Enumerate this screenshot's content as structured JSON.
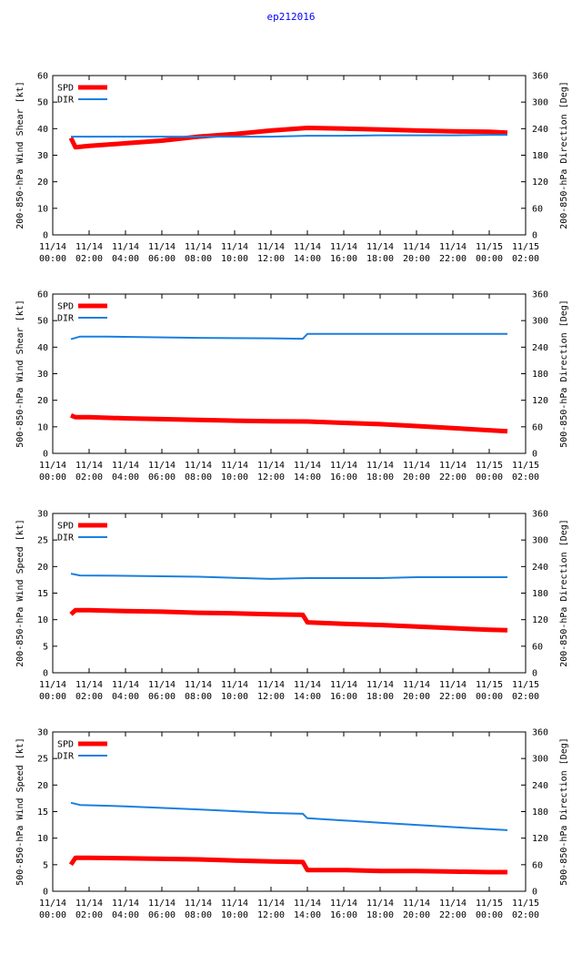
{
  "title": "ep212016",
  "colors": {
    "spd": "#ff0000",
    "dir": "#1a7fe0",
    "grid": "#000000"
  },
  "x_ticks": [
    [
      "11/14",
      "00:00"
    ],
    [
      "11/14",
      "02:00"
    ],
    [
      "11/14",
      "04:00"
    ],
    [
      "11/14",
      "06:00"
    ],
    [
      "11/14",
      "08:00"
    ],
    [
      "11/14",
      "10:00"
    ],
    [
      "11/14",
      "12:00"
    ],
    [
      "11/14",
      "14:00"
    ],
    [
      "11/14",
      "16:00"
    ],
    [
      "11/14",
      "18:00"
    ],
    [
      "11/14",
      "20:00"
    ],
    [
      "11/14",
      "22:00"
    ],
    [
      "11/15",
      "00:00"
    ],
    [
      "11/15",
      "02:00"
    ]
  ],
  "chart_data": [
    {
      "type": "line",
      "ylabel": "200-850-hPa Wind Shear [kt]",
      "y2label": "200-850-hPa Direction [Deg]",
      "xlim": [
        "11/14 00:00",
        "11/15 02:00"
      ],
      "ylim": [
        0,
        60
      ],
      "yticks": [
        0,
        10,
        20,
        30,
        40,
        50,
        60
      ],
      "y2lim": [
        0,
        360
      ],
      "y2ticks": [
        0,
        60,
        120,
        180,
        240,
        300,
        360
      ],
      "legend": [
        "SPD",
        "DIR"
      ],
      "series": [
        {
          "name": "SPD",
          "axis": "left",
          "x": [
            "11/14 01:00",
            "11/14 01:15",
            "11/14 02:00",
            "11/14 04:00",
            "11/14 06:00",
            "11/14 08:00",
            "11/14 10:00",
            "11/14 12:00",
            "11/14 14:00",
            "11/14 16:00",
            "11/14 18:00",
            "11/14 20:00",
            "11/14 22:00",
            "11/15 00:00",
            "11/15 01:00"
          ],
          "y": [
            36.5,
            33,
            33.5,
            34.5,
            35.5,
            37,
            38,
            39.3,
            40.3,
            40,
            39.7,
            39.3,
            39,
            38.8,
            38.5
          ]
        },
        {
          "name": "DIR",
          "axis": "right",
          "x": [
            "11/14 01:00",
            "11/14 04:00",
            "11/14 08:00",
            "11/14 12:00",
            "11/14 14:00",
            "11/14 16:00",
            "11/14 18:00",
            "11/14 22:00",
            "11/15 00:00",
            "11/15 01:00"
          ],
          "y": [
            222,
            222,
            222,
            222,
            224,
            224,
            225,
            225,
            226,
            226
          ]
        }
      ]
    },
    {
      "type": "line",
      "ylabel": "500-850-hPa Wind Shear [kt]",
      "y2label": "500-850-hPa Direction [Deg]",
      "xlim": [
        "11/14 00:00",
        "11/15 02:00"
      ],
      "ylim": [
        0,
        60
      ],
      "yticks": [
        0,
        10,
        20,
        30,
        40,
        50,
        60
      ],
      "y2lim": [
        0,
        360
      ],
      "y2ticks": [
        0,
        60,
        120,
        180,
        240,
        300,
        360
      ],
      "legend": [
        "SPD",
        "DIR"
      ],
      "series": [
        {
          "name": "SPD",
          "axis": "left",
          "x": [
            "11/14 01:00",
            "11/14 01:15",
            "11/14 02:00",
            "11/14 04:00",
            "11/14 06:00",
            "11/14 08:00",
            "11/14 10:00",
            "11/14 12:00",
            "11/14 14:00",
            "11/14 16:00",
            "11/14 18:00",
            "11/14 20:00",
            "11/14 22:00",
            "11/15 00:00",
            "11/15 01:00"
          ],
          "y": [
            14.3,
            13.6,
            13.6,
            13.2,
            12.9,
            12.6,
            12.3,
            12.1,
            12.0,
            11.5,
            11.0,
            10.3,
            9.5,
            8.7,
            8.3
          ]
        },
        {
          "name": "DIR",
          "axis": "right",
          "x": [
            "11/14 01:00",
            "11/14 01:30",
            "11/14 03:00",
            "11/14 08:00",
            "11/14 12:00",
            "11/14 13:45",
            "11/14 14:00",
            "11/14 18:00",
            "11/15 01:00"
          ],
          "y": [
            258,
            264,
            264,
            261,
            260,
            259,
            270,
            270,
            270
          ]
        }
      ]
    },
    {
      "type": "line",
      "ylabel": "200-850-hPa Wind Speed [kt]",
      "y2label": "200-850-hPa Direction [Deg]",
      "xlim": [
        "11/14 00:00",
        "11/15 02:00"
      ],
      "ylim": [
        0,
        30
      ],
      "yticks": [
        0,
        5,
        10,
        15,
        20,
        25,
        30
      ],
      "y2lim": [
        0,
        360
      ],
      "y2ticks": [
        0,
        60,
        120,
        180,
        240,
        300,
        360
      ],
      "legend": [
        "SPD",
        "DIR"
      ],
      "series": [
        {
          "name": "SPD",
          "axis": "left",
          "x": [
            "11/14 01:00",
            "11/14 01:15",
            "11/14 02:00",
            "11/14 04:00",
            "11/14 06:00",
            "11/14 08:00",
            "11/14 10:00",
            "11/14 12:00",
            "11/14 13:45",
            "11/14 14:00",
            "11/14 16:00",
            "11/14 18:00",
            "11/14 20:00",
            "11/14 22:00",
            "11/15 00:00",
            "11/15 01:00"
          ],
          "y": [
            11.0,
            11.8,
            11.8,
            11.6,
            11.5,
            11.3,
            11.2,
            11.0,
            10.9,
            9.5,
            9.2,
            9.0,
            8.7,
            8.4,
            8.1,
            8.0
          ]
        },
        {
          "name": "DIR",
          "axis": "right",
          "x": [
            "11/14 01:00",
            "11/14 01:30",
            "11/14 04:00",
            "11/14 08:00",
            "11/14 12:00",
            "11/14 14:00",
            "11/14 18:00",
            "11/14 20:00",
            "11/15 01:00"
          ],
          "y": [
            224,
            220,
            219,
            217,
            212,
            214,
            214,
            216,
            216
          ]
        }
      ]
    },
    {
      "type": "line",
      "ylabel": "500-850-hPa Wind Speed [kt]",
      "y2label": "500-850-hPa Direction [Deg]",
      "xlim": [
        "11/14 00:00",
        "11/15 02:00"
      ],
      "ylim": [
        0,
        30
      ],
      "yticks": [
        0,
        5,
        10,
        15,
        20,
        25,
        30
      ],
      "y2lim": [
        0,
        360
      ],
      "y2ticks": [
        0,
        60,
        120,
        180,
        240,
        300,
        360
      ],
      "legend": [
        "SPD",
        "DIR"
      ],
      "series": [
        {
          "name": "SPD",
          "axis": "left",
          "x": [
            "11/14 01:00",
            "11/14 01:15",
            "11/14 02:00",
            "11/14 04:00",
            "11/14 06:00",
            "11/14 08:00",
            "11/14 10:00",
            "11/14 12:00",
            "11/14 13:45",
            "11/14 14:00",
            "11/14 16:00",
            "11/14 18:00",
            "11/14 20:00",
            "11/14 22:00",
            "11/15 00:00",
            "11/15 01:00"
          ],
          "y": [
            5.0,
            6.3,
            6.3,
            6.2,
            6.1,
            6.0,
            5.8,
            5.6,
            5.5,
            4.0,
            4.0,
            3.8,
            3.8,
            3.7,
            3.6,
            3.6
          ]
        },
        {
          "name": "DIR",
          "axis": "right",
          "x": [
            "11/14 01:00",
            "11/14 01:30",
            "11/14 04:00",
            "11/14 08:00",
            "11/14 12:00",
            "11/14 13:45",
            "11/14 14:00",
            "11/14 18:00",
            "11/14 22:00",
            "11/15 01:00"
          ],
          "y": [
            200,
            195,
            192,
            185,
            177,
            175,
            165,
            155,
            145,
            138
          ]
        }
      ]
    }
  ]
}
